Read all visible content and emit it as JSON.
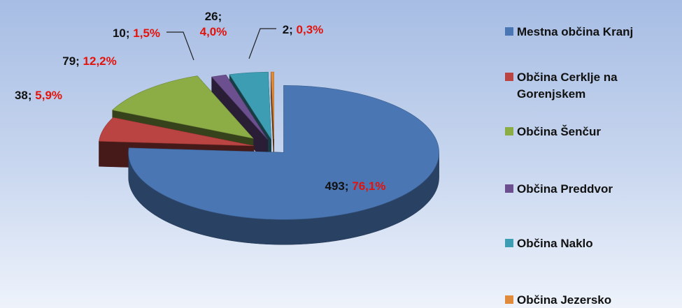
{
  "chart_data": {
    "type": "pie",
    "style": "exploded-3d",
    "categories": [
      "Mestna občina Kranj",
      "Občina Cerklje na Gorenjskem",
      "Občina Šenčur",
      "Občina Preddvor",
      "Občina Naklo",
      "Občina Jezersko"
    ],
    "values": [
      493,
      38,
      79,
      10,
      26,
      2
    ],
    "percent_labels": [
      "76,1%",
      "5,9%",
      "12,2%",
      "1,5%",
      "4,0%",
      "0,3%"
    ],
    "colors": [
      "#4a77b4",
      "#b94441",
      "#8cad46",
      "#6b4f8e",
      "#3d9eb3",
      "#e08a3c"
    ],
    "legend_position": "right"
  }
}
